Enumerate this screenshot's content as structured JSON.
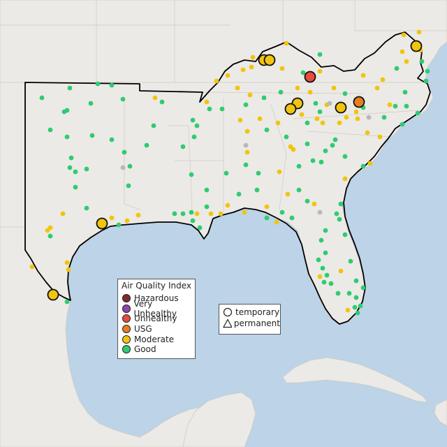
{
  "legend_aqi": {
    "title": "Air Quality Index",
    "items": [
      {
        "label": "Hazardous",
        "color": "#7e2b2b"
      },
      {
        "label": "Very Unhealthy",
        "color": "#8e44ad"
      },
      {
        "label": "Unhealthy",
        "color": "#e74c3c"
      },
      {
        "label": "USG",
        "color": "#e67e22"
      },
      {
        "label": "Moderate",
        "color": "#f1c40f"
      },
      {
        "label": "Good",
        "color": "#2ecc71"
      }
    ]
  },
  "legend_shape": {
    "temporary": "temporary",
    "permanent": "permanent"
  },
  "colors": {
    "water": "#bcd3e8",
    "land": "#eceae6",
    "region_outline": "#000000",
    "missing": "#b8b8b8"
  }
}
